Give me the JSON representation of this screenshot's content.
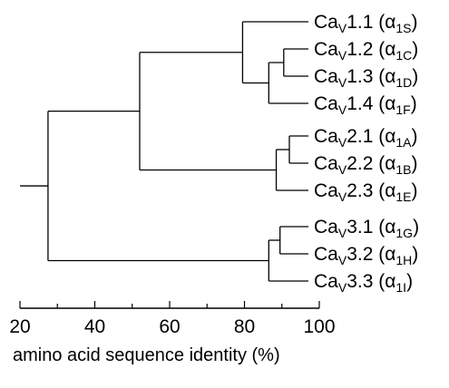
{
  "diagram": {
    "type": "dendrogram",
    "leaves": [
      {
        "main": "Ca",
        "sub1": "V",
        "num": "1.1",
        "alpha": "α",
        "sub2": "1S"
      },
      {
        "main": "Ca",
        "sub1": "V",
        "num": "1.2",
        "alpha": "α",
        "sub2": "1C"
      },
      {
        "main": "Ca",
        "sub1": "V",
        "num": "1.3",
        "alpha": "α",
        "sub2": "1D"
      },
      {
        "main": "Ca",
        "sub1": "V",
        "num": "1.4",
        "alpha": "α",
        "sub2": "1F"
      },
      {
        "main": "Ca",
        "sub1": "V",
        "num": "2.1",
        "alpha": "α",
        "sub2": "1A"
      },
      {
        "main": "Ca",
        "sub1": "V",
        "num": "2.2",
        "alpha": "α",
        "sub2": "1B"
      },
      {
        "main": "Ca",
        "sub1": "V",
        "num": "2.3",
        "alpha": "α",
        "sub2": "1E"
      },
      {
        "main": "Ca",
        "sub1": "V",
        "num": "3.1",
        "alpha": "α",
        "sub2": "1G"
      },
      {
        "main": "Ca",
        "sub1": "V",
        "num": "3.2",
        "alpha": "α",
        "sub2": "1H"
      },
      {
        "main": "Ca",
        "sub1": "V",
        "num": "3.3",
        "alpha": "α",
        "sub2": "1I"
      }
    ],
    "axis": {
      "ticks": [
        "20",
        "40",
        "60",
        "80",
        "100"
      ],
      "xlabel": "amino acid sequence identity (%)",
      "xlim": [
        20,
        100
      ]
    }
  }
}
